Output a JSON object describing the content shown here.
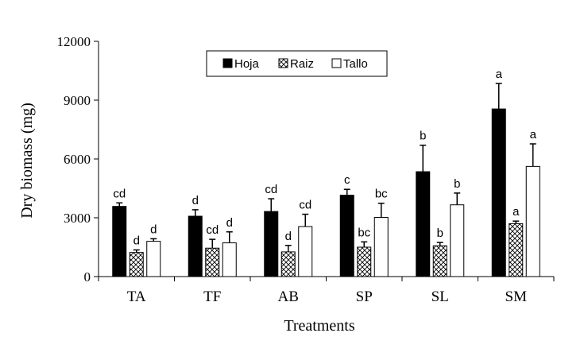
{
  "chart_data": {
    "type": "bar",
    "title": "",
    "xlabel": "Treatments",
    "ylabel": "Dry biomass (mg)",
    "ylim": [
      0,
      12000
    ],
    "yticks": [
      0,
      3000,
      6000,
      9000,
      12000
    ],
    "ytick_labels": [
      "0",
      "3000",
      "6000",
      "9000",
      "12000"
    ],
    "categories": [
      "TA",
      "TF",
      "AB",
      "SP",
      "SL",
      "SM"
    ],
    "legend_position": "top-center",
    "series": [
      {
        "name": "Hoja",
        "pattern": "solid-black",
        "values": [
          3580,
          3080,
          3320,
          4150,
          5350,
          8550
        ],
        "errors": [
          180,
          330,
          650,
          300,
          1350,
          1300
        ],
        "labels": [
          "cd",
          "d",
          "cd",
          "c",
          "b",
          "a"
        ]
      },
      {
        "name": "Raiz",
        "pattern": "crosshatch",
        "values": [
          1230,
          1450,
          1260,
          1500,
          1570,
          2700
        ],
        "errors": [
          130,
          450,
          330,
          270,
          170,
          130
        ],
        "labels": [
          "d",
          "cd",
          "d",
          "bc",
          "b",
          "a"
        ]
      },
      {
        "name": "Tallo",
        "pattern": "white",
        "values": [
          1800,
          1720,
          2550,
          3020,
          3660,
          5620
        ],
        "errors": [
          130,
          560,
          630,
          720,
          600,
          1150
        ],
        "labels": [
          "d",
          "d",
          "cd",
          "bc",
          "b",
          "a"
        ]
      }
    ]
  }
}
